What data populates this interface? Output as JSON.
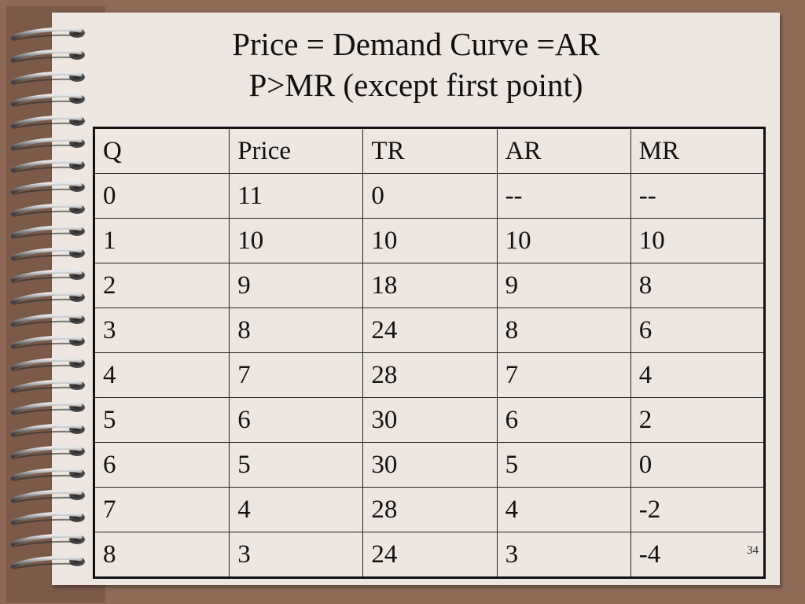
{
  "title": {
    "line1": "Price = Demand Curve =AR",
    "line2": "P>MR (except first point)"
  },
  "table": {
    "headers": [
      "Q",
      "Price",
      "TR",
      "AR",
      "MR"
    ],
    "rows": [
      [
        "0",
        "11",
        "0",
        "--",
        "--"
      ],
      [
        "1",
        "10",
        "10",
        "10",
        "10"
      ],
      [
        "2",
        "9",
        "18",
        "9",
        "8"
      ],
      [
        "3",
        "8",
        "24",
        "8",
        "6"
      ],
      [
        "4",
        "7",
        "28",
        "7",
        "4"
      ],
      [
        "5",
        "6",
        "30",
        "6",
        "2"
      ],
      [
        "6",
        "5",
        "30",
        "5",
        "0"
      ],
      [
        "7",
        "4",
        "28",
        "4",
        "-2"
      ],
      [
        "8",
        "3",
        "24",
        "3",
        "-4"
      ]
    ]
  },
  "slide_number": "34",
  "colors": {
    "background": "#8e6a56",
    "page": "#ede6e1",
    "text": "#111111"
  },
  "decorations": {
    "binding": "spiral-binding-icon"
  }
}
